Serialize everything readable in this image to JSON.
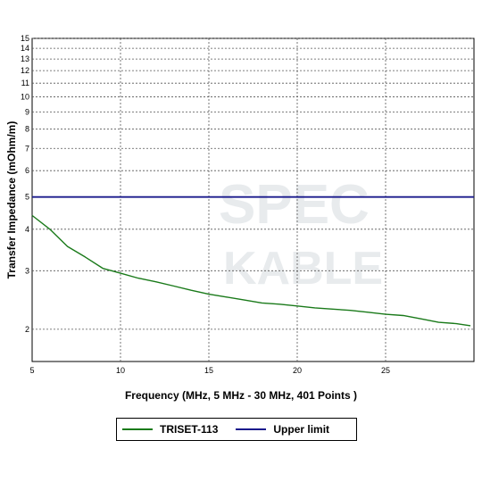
{
  "chart_data": {
    "type": "line",
    "xlabel": "Frequency (MHz, 5 MHz - 30 MHz, 401 Points )",
    "ylabel": "Transfer Impedance (mOhm/m)",
    "xlim": [
      5,
      30
    ],
    "ylim": [
      1.6,
      15
    ],
    "yscale": "log",
    "grid": true,
    "legend_position": "bottom",
    "x_ticks": [
      5,
      10,
      15,
      20,
      25
    ],
    "y_ticks": [
      2,
      3,
      4,
      5,
      6,
      7,
      8,
      9,
      10,
      11,
      12,
      13,
      14,
      15
    ],
    "watermark": [
      "SPEC",
      "KABLE"
    ],
    "series": [
      {
        "name": "TRISET-113",
        "color": "#1a7a1a",
        "points": [
          [
            5.0,
            4.4
          ],
          [
            6.0,
            4.0
          ],
          [
            7.0,
            3.55
          ],
          [
            8.0,
            3.3
          ],
          [
            9.0,
            3.05
          ],
          [
            10.0,
            2.95
          ],
          [
            11.0,
            2.85
          ],
          [
            12.0,
            2.78
          ],
          [
            13.0,
            2.7
          ],
          [
            14.0,
            2.62
          ],
          [
            15.0,
            2.55
          ],
          [
            16.0,
            2.5
          ],
          [
            17.0,
            2.45
          ],
          [
            18.0,
            2.4
          ],
          [
            19.0,
            2.38
          ],
          [
            20.0,
            2.35
          ],
          [
            21.0,
            2.32
          ],
          [
            22.0,
            2.3
          ],
          [
            23.0,
            2.28
          ],
          [
            24.0,
            2.25
          ],
          [
            25.0,
            2.22
          ],
          [
            26.0,
            2.2
          ],
          [
            27.0,
            2.15
          ],
          [
            28.0,
            2.1
          ],
          [
            29.0,
            2.08
          ],
          [
            29.8,
            2.05
          ]
        ]
      },
      {
        "name": "Upper limit",
        "color": "#1a1a8c",
        "points": [
          [
            5.0,
            5.0
          ],
          [
            30.0,
            5.0
          ]
        ]
      }
    ]
  }
}
